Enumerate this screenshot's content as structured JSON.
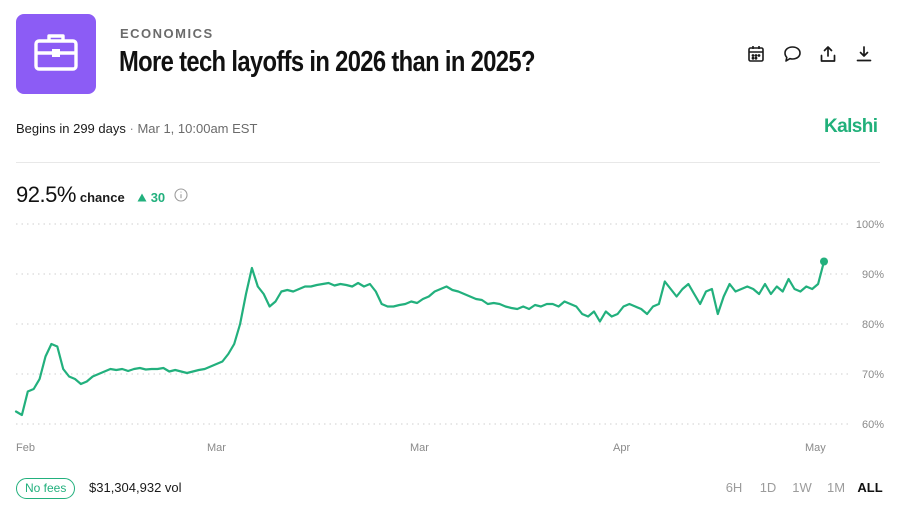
{
  "market": {
    "category": "ECONOMICS",
    "title": "More tech layoffs in 2026 than in 2025?",
    "begins": "Begins in 299 days",
    "separator": "·",
    "begins_date": "Mar 1, 10:00am EST",
    "brand": "Kalshi",
    "logo_icon": "briefcase-icon"
  },
  "actions": [
    {
      "name": "calendar-icon"
    },
    {
      "name": "comment-icon"
    },
    {
      "name": "share-icon"
    },
    {
      "name": "download-icon"
    }
  ],
  "odds": {
    "chance_value": "92.5%",
    "chance_label": "chance",
    "delta": "30",
    "delta_direction": "up"
  },
  "chart_data": {
    "type": "line",
    "ylim": [
      60,
      100
    ],
    "y_ticks": [
      "100%",
      "90%",
      "80%",
      "70%",
      "60%"
    ],
    "x_ticks": [
      "Feb",
      "Mar",
      "Mar",
      "Apr",
      "May"
    ],
    "y_values": [
      62.5,
      61.8,
      66.5,
      67.0,
      69.0,
      73.5,
      76.0,
      75.5,
      71.0,
      69.5,
      69.0,
      68.0,
      68.5,
      69.5,
      70.0,
      70.5,
      71.0,
      70.8,
      71.0,
      70.6,
      71.0,
      71.2,
      70.9,
      71.0,
      71.0,
      71.2,
      70.5,
      70.8,
      70.5,
      70.2,
      70.5,
      70.8,
      71.0,
      71.5,
      72.0,
      72.5,
      74.0,
      76.0,
      80.0,
      86.0,
      91.2,
      87.5,
      86.0,
      83.5,
      84.5,
      86.5,
      86.8,
      86.5,
      87.0,
      87.5,
      87.5,
      87.8,
      88.0,
      88.2,
      87.7,
      88.0,
      87.8,
      87.5,
      88.2,
      87.5,
      88.0,
      86.5,
      84.0,
      83.5,
      83.5,
      83.8,
      84.0,
      84.5,
      84.2,
      85.0,
      85.5,
      86.5,
      87.0,
      87.5,
      86.8,
      86.5,
      86.0,
      85.5,
      85.0,
      84.8,
      84.0,
      84.2,
      84.0,
      83.5,
      83.2,
      83.0,
      83.5,
      83.0,
      83.8,
      83.5,
      84.0,
      84.0,
      83.5,
      84.5,
      84.0,
      83.5,
      82.0,
      81.5,
      82.5,
      80.5,
      82.5,
      81.5,
      82.0,
      83.5,
      84.0,
      83.5,
      83.0,
      82.0,
      83.5,
      84.0,
      88.5,
      87.0,
      85.5,
      87.0,
      88.0,
      86.0,
      84.0,
      86.5,
      87.0,
      82.0,
      85.5,
      88.0,
      86.5,
      87.0,
      87.5,
      87.0,
      86.0,
      88.0,
      86.0,
      87.5,
      86.5,
      89.0,
      87.0,
      86.5,
      87.5,
      87.0,
      88.0,
      92.5
    ],
    "end_value": 92.5
  },
  "footer": {
    "fees_badge": "No fees",
    "volume": "$31,304,932 vol",
    "ranges": [
      "6H",
      "1D",
      "1W",
      "1M",
      "ALL"
    ],
    "active_range": "ALL"
  },
  "colors": {
    "accent_green": "#22b07d",
    "brand_green": "#21b07a",
    "logo_bg": "#8c5cf5"
  }
}
